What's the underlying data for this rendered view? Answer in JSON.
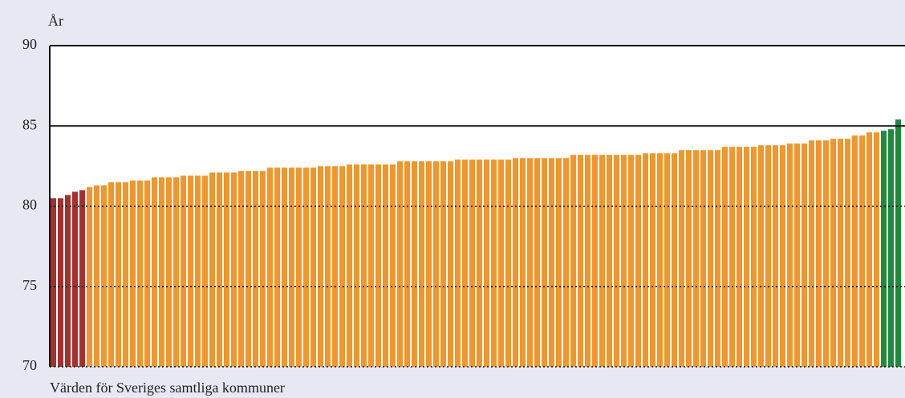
{
  "chart_data": {
    "type": "bar",
    "ylabel": "År",
    "xlabel": "Värden för Sveriges samtliga kommuner",
    "ylim": [
      70,
      90
    ],
    "yticks": [
      70,
      75,
      80,
      85,
      90
    ],
    "grid": true,
    "series": [
      {
        "color": "#a5302e",
        "values": [
          80.5,
          80.5,
          80.7,
          80.9,
          81.0
        ]
      },
      {
        "color": "#f0962c",
        "values": [
          81.2,
          81.3,
          81.3,
          81.5,
          81.5,
          81.5,
          81.6,
          81.6,
          81.6,
          81.8,
          81.8,
          81.8,
          81.8,
          81.9,
          81.9,
          81.9,
          81.9,
          82.1,
          82.1,
          82.1,
          82.1,
          82.2,
          82.2,
          82.2,
          82.2,
          82.4,
          82.4,
          82.4,
          82.4,
          82.4,
          82.4,
          82.4,
          82.5,
          82.5,
          82.5,
          82.5,
          82.6,
          82.6,
          82.6,
          82.6,
          82.6,
          82.6,
          82.6,
          82.8,
          82.8,
          82.8,
          82.8,
          82.8,
          82.8,
          82.8,
          82.8,
          82.9,
          82.9,
          82.9,
          82.9,
          82.9,
          82.9,
          82.9,
          82.9,
          83.0,
          83.0,
          83.0,
          83.0,
          83.0,
          83.0,
          83.0,
          83.0,
          83.2,
          83.2,
          83.2,
          83.2,
          83.2,
          83.2,
          83.2,
          83.2,
          83.2,
          83.2,
          83.3,
          83.3,
          83.3,
          83.3,
          83.3,
          83.5,
          83.5,
          83.5,
          83.5,
          83.5,
          83.5,
          83.7,
          83.7,
          83.7,
          83.7,
          83.7,
          83.8,
          83.8,
          83.8,
          83.8,
          83.9,
          83.9,
          83.9,
          84.1,
          84.1,
          84.1,
          84.2,
          84.2,
          84.2,
          84.4,
          84.4,
          84.6,
          84.6
        ]
      },
      {
        "color": "#1e8a3c",
        "values": [
          84.7,
          84.8,
          85.4
        ]
      }
    ]
  }
}
